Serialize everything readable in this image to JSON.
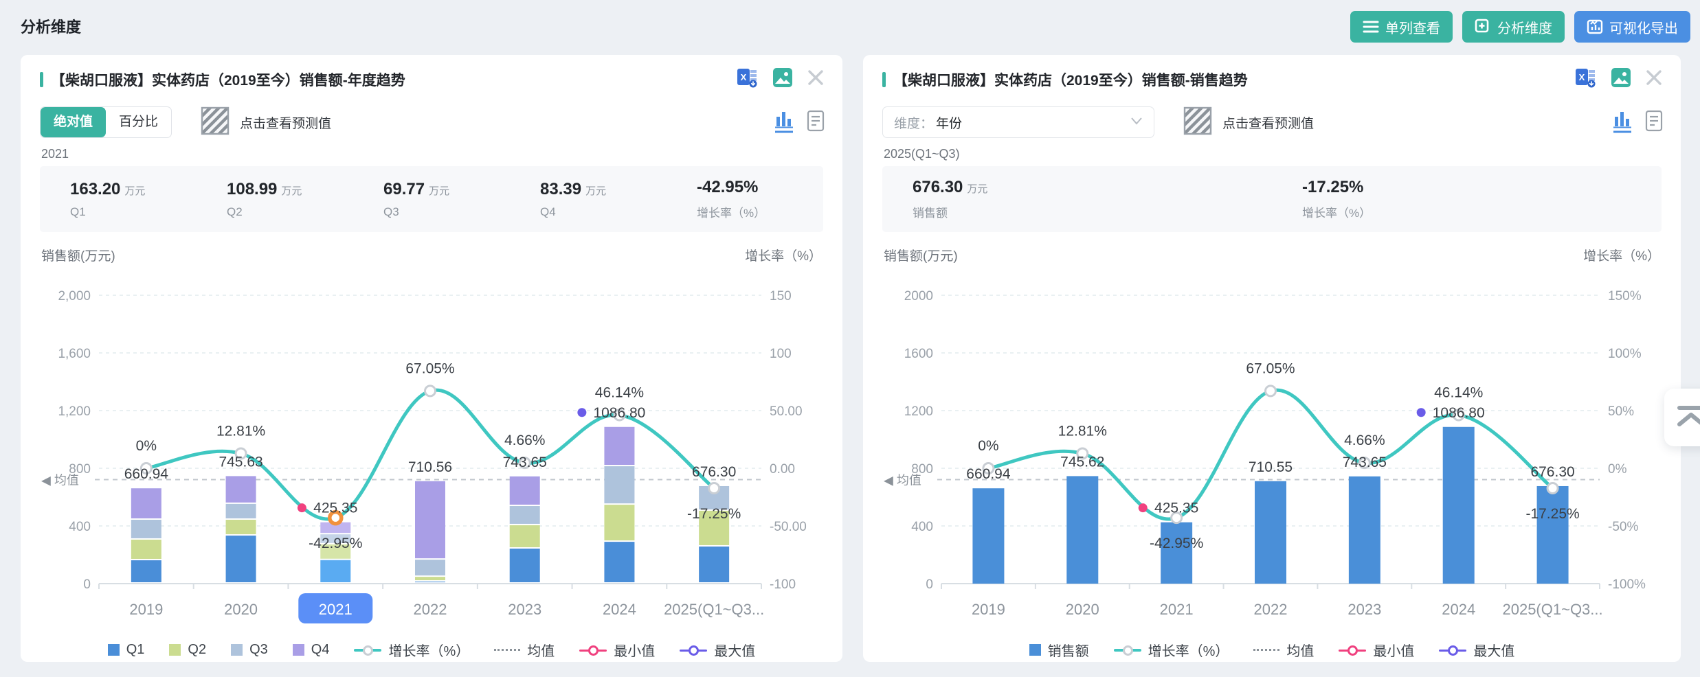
{
  "page": {
    "title": "分析维度",
    "background": "#edf0f4"
  },
  "topbar_buttons": [
    {
      "label": "单列查看",
      "color": "#3ab3a1",
      "icon": "single-column-view-icon"
    },
    {
      "label": "分析维度",
      "color": "#3ab3a1",
      "icon": "add-dimension-icon"
    },
    {
      "label": "可视化导出",
      "color": "#4b8fe2",
      "icon": "visual-export-icon"
    }
  ],
  "floating": {
    "back_to_top_icon": "back-to-top-icon"
  },
  "panels": [
    {
      "title": "【柴胡口服液】实体药店（2019至今）销售额-年度趋势",
      "header_icons": [
        "excel-export-icon",
        "image-export-icon",
        "close-icon"
      ],
      "tools": {
        "abs": "绝对值",
        "pct": "百分比",
        "selected": "绝对值",
        "forecast": "点击查看预测值"
      },
      "view_icons": [
        "bar-chart-view-icon",
        "table-view-icon"
      ],
      "period": "2021",
      "stats": [
        {
          "value": "163.20",
          "unit": "万元",
          "label": "Q1"
        },
        {
          "value": "108.99",
          "unit": "万元",
          "label": "Q2"
        },
        {
          "value": "69.77",
          "unit": "万元",
          "label": "Q3"
        },
        {
          "value": "83.39",
          "unit": "万元",
          "label": "Q4"
        },
        {
          "value": "-42.95%",
          "unit": "",
          "label": "增长率（%）"
        }
      ],
      "axis_left": "销售额(万元)",
      "axis_right": "增长率（%）"
    },
    {
      "title": "【柴胡口服液】实体药店（2019至今）销售额-销售趋势",
      "header_icons": [
        "excel-export-icon",
        "image-export-icon",
        "close-icon"
      ],
      "tools": {
        "dim_label": "维度：",
        "dim_value": "年份",
        "forecast": "点击查看预测值"
      },
      "view_icons": [
        "bar-chart-view-icon",
        "table-view-icon"
      ],
      "period": "2025(Q1~Q3)",
      "stats": [
        {
          "value": "676.30",
          "unit": "万元",
          "label": "销售额"
        },
        {
          "value": "-17.25%",
          "unit": "",
          "label": "增长率（%）"
        }
      ],
      "axis_left": "销售额(万元)",
      "axis_right": "增长率（%）"
    }
  ],
  "chart_data": [
    {
      "type": "bar",
      "subtype": "stacked-bar-with-growth-line",
      "title": "【柴胡口服液】实体药店（2019至今）销售额-年度趋势",
      "categories": [
        "2019",
        "2020",
        "2021",
        "2022",
        "2023",
        "2024",
        "2025(Q1~Q3..."
      ],
      "series": [
        {
          "name": "Q1",
          "color": "#4a8ed8",
          "values": [
            162,
            333,
            163.2,
            14,
            243,
            290,
            257.3
          ]
        },
        {
          "name": "Q2",
          "color": "#cbdc90",
          "values": [
            143,
            110,
            108.99,
            33,
            162,
            257,
            248
          ]
        },
        {
          "name": "Q3",
          "color": "#aec3dc",
          "values": [
            138,
            110,
            69.77,
            119,
            133,
            267,
            171
          ]
        },
        {
          "name": "Q4",
          "color": "#a99ee6",
          "values": [
            217.94,
            192.63,
            83.39,
            544.56,
            205.65,
            272.8,
            0
          ]
        }
      ],
      "totals": [
        660.94,
        745.63,
        425.35,
        710.56,
        743.65,
        1086.8,
        676.3
      ],
      "totals_labels": [
        "660.94",
        "745.63",
        "425.35",
        "710.56",
        "743.65",
        "1086.80",
        "676.30"
      ],
      "growth_series": {
        "name": "增长率（%）",
        "color": "#3fc7c1",
        "values": [
          0,
          12.81,
          -42.95,
          67.05,
          4.66,
          46.14,
          -17.25
        ],
        "labels": [
          "0%",
          "12.81%",
          "-42.95%",
          "67.05%",
          "4.66%",
          "46.14%",
          "-17.25%"
        ]
      },
      "mean_label": "均值",
      "mean_value": 721.32,
      "min": {
        "index": 2,
        "color": "#f0417f",
        "label": "最小值"
      },
      "max": {
        "index": 5,
        "color": "#6a5ce8",
        "label": "最大值"
      },
      "selected_index": 2,
      "selected_marker_color": "#f2913d",
      "highlight_colors": [
        "#5aabf2",
        "#d6e5a8",
        "#c5d4e8",
        "#c0b4f0"
      ],
      "selected_label_bg": "#5b8ff7",
      "y_left": {
        "name": "销售额(万元)",
        "min": 0,
        "max": 2000,
        "ticks": [
          "0",
          "400",
          "800",
          "1,200",
          "1,600",
          "2,000"
        ]
      },
      "y_right": {
        "name": "增长率（%）",
        "min": -100,
        "max": 150,
        "ticks": [
          "-100",
          "-50.00",
          "0.00",
          "50.00",
          "100",
          "150"
        ]
      },
      "legend": [
        {
          "type": "rect",
          "color": "#4a8ed8",
          "label": "Q1"
        },
        {
          "type": "rect",
          "color": "#cbdc90",
          "label": "Q2"
        },
        {
          "type": "rect",
          "color": "#aec3dc",
          "label": "Q3"
        },
        {
          "type": "rect",
          "color": "#a99ee6",
          "label": "Q4"
        },
        {
          "type": "linedot",
          "color": "#3fc7c1",
          "label": "增长率（%）"
        },
        {
          "type": "dots",
          "color": "#8b9299",
          "label": "均值"
        },
        {
          "type": "ring",
          "color": "#f0417f",
          "label": "最小值"
        },
        {
          "type": "ring",
          "color": "#6a5ce8",
          "label": "最大值"
        }
      ]
    },
    {
      "type": "bar",
      "subtype": "bar-with-growth-line",
      "title": "【柴胡口服液】实体药店（2019至今）销售额-销售趋势",
      "categories": [
        "2019",
        "2020",
        "2021",
        "2022",
        "2023",
        "2024",
        "2025(Q1~Q3..."
      ],
      "series": [
        {
          "name": "销售额",
          "color": "#4a8fd8",
          "values": [
            660.94,
            745.62,
            425.35,
            710.55,
            743.65,
            1086.8,
            676.3
          ]
        }
      ],
      "totals": [
        660.94,
        745.62,
        425.35,
        710.55,
        743.65,
        1086.8,
        676.3
      ],
      "totals_labels": [
        "660.94",
        "745.62",
        "425.35",
        "710.55",
        "743.65",
        "1086.80",
        "676.30"
      ],
      "growth_series": {
        "name": "增长率（%）",
        "color": "#3fc7c1",
        "values": [
          0,
          12.81,
          -42.95,
          67.05,
          4.66,
          46.14,
          -17.25
        ],
        "labels": [
          "0%",
          "12.81%",
          "-42.95%",
          "67.05%",
          "4.66%",
          "46.14%",
          "-17.25%"
        ]
      },
      "mean_label": "均值",
      "mean_value": 721.31,
      "min": {
        "index": 2,
        "color": "#f0417f",
        "label": "最小值"
      },
      "max": {
        "index": 5,
        "color": "#6a5ce8",
        "label": "最大值"
      },
      "selected_index": null,
      "y_left": {
        "name": "销售额(万元)",
        "min": 0,
        "max": 2000,
        "ticks": [
          "0",
          "400",
          "800",
          "1200",
          "1600",
          "2000"
        ]
      },
      "y_right": {
        "name": "增长率（%）",
        "min": -100,
        "max": 150,
        "ticks": [
          "-100%",
          "-50%",
          "0%",
          "50%",
          "100%",
          "150%"
        ]
      },
      "legend": [
        {
          "type": "rect",
          "color": "#4a8fd8",
          "label": "销售额"
        },
        {
          "type": "linedot",
          "color": "#3fc7c1",
          "label": "增长率（%）"
        },
        {
          "type": "dots",
          "color": "#8b9299",
          "label": "均值"
        },
        {
          "type": "ring",
          "color": "#f0417f",
          "label": "最小值"
        },
        {
          "type": "ring",
          "color": "#6a5ce8",
          "label": "最大值"
        }
      ]
    }
  ]
}
